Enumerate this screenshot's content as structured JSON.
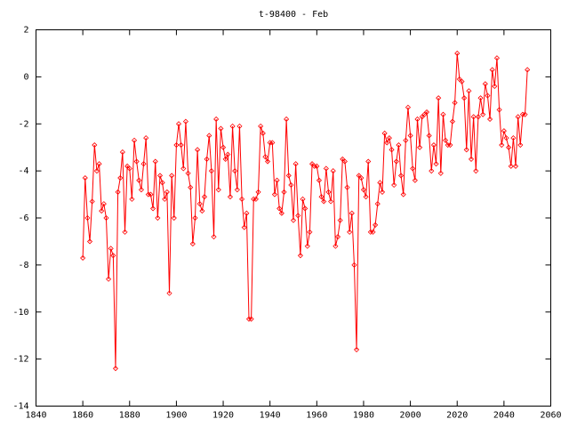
{
  "chart_data": {
    "type": "line",
    "title": "t-98400 - Feb",
    "x": [
      1860,
      1861,
      1862,
      1863,
      1864,
      1865,
      1866,
      1867,
      1868,
      1869,
      1870,
      1871,
      1872,
      1873,
      1874,
      1875,
      1876,
      1877,
      1878,
      1879,
      1880,
      1881,
      1882,
      1883,
      1884,
      1885,
      1886,
      1887,
      1888,
      1889,
      1890,
      1891,
      1892,
      1893,
      1894,
      1895,
      1896,
      1897,
      1898,
      1899,
      1900,
      1901,
      1902,
      1903,
      1904,
      1905,
      1906,
      1907,
      1908,
      1909,
      1910,
      1911,
      1912,
      1913,
      1914,
      1915,
      1916,
      1917,
      1918,
      1919,
      1920,
      1921,
      1922,
      1923,
      1924,
      1925,
      1926,
      1927,
      1928,
      1929,
      1930,
      1931,
      1932,
      1933,
      1934,
      1935,
      1936,
      1937,
      1938,
      1939,
      1940,
      1941,
      1942,
      1943,
      1944,
      1945,
      1946,
      1947,
      1948,
      1949,
      1950,
      1951,
      1952,
      1953,
      1954,
      1955,
      1956,
      1957,
      1958,
      1959,
      1960,
      1961,
      1962,
      1963,
      1964,
      1965,
      1966,
      1967,
      1968,
      1969,
      1970,
      1971,
      1972,
      1973,
      1974,
      1975,
      1976,
      1977,
      1978,
      1979,
      1980,
      1981,
      1982,
      1983,
      1984,
      1985,
      1986,
      1987,
      1988,
      1989,
      1990,
      1991,
      1992,
      1993,
      1994,
      1995,
      1996,
      1997,
      1998,
      1999,
      2000,
      2001,
      2002,
      2003,
      2004,
      2005,
      2006,
      2007,
      2008,
      2009,
      2010,
      2011,
      2012,
      2013,
      2014,
      2015,
      2016,
      2017,
      2018,
      2019,
      2020,
      2021,
      2022,
      2023,
      2024,
      2025,
      2026,
      2027,
      2028,
      2029,
      2030,
      2031,
      2032,
      2033,
      2034,
      2035,
      2036,
      2037,
      2038,
      2039,
      2040,
      2041,
      2042,
      2043,
      2044,
      2045,
      2046,
      2047,
      2048,
      2049,
      2050
    ],
    "series": [
      {
        "color": "#ff0000",
        "values": [
          -7.7,
          -4.3,
          -6.0,
          -7.0,
          -5.3,
          -2.9,
          -4.0,
          -3.7,
          -5.7,
          -5.4,
          -6.0,
          -8.6,
          -7.3,
          -7.6,
          -12.4,
          -4.9,
          -4.3,
          -3.2,
          -6.6,
          -3.8,
          -3.9,
          -5.2,
          -2.7,
          -3.6,
          -4.4,
          -4.8,
          -3.7,
          -2.6,
          -5.0,
          -5.0,
          -5.6,
          -3.6,
          -6.0,
          -4.2,
          -4.5,
          -5.2,
          -4.9,
          -9.2,
          -4.2,
          -6.0,
          -2.9,
          -2.0,
          -2.9,
          -3.9,
          -1.9,
          -4.1,
          -4.7,
          -7.1,
          -6.0,
          -3.1,
          -5.4,
          -5.7,
          -5.1,
          -3.5,
          -2.5,
          -4.0,
          -6.8,
          -1.8,
          -4.8,
          -2.2,
          -3.0,
          -3.5,
          -3.3,
          -5.1,
          -2.1,
          -4.0,
          -4.8,
          -2.1,
          -5.2,
          -6.4,
          -5.8,
          -10.3,
          -10.3,
          -5.2,
          -5.2,
          -4.9,
          -2.1,
          -2.4,
          -3.4,
          -3.6,
          -2.8,
          -2.8,
          -5.0,
          -4.4,
          -5.6,
          -5.8,
          -4.9,
          -1.8,
          -4.2,
          -4.6,
          -6.1,
          -3.7,
          -5.9,
          -7.6,
          -5.2,
          -5.6,
          -7.2,
          -6.6,
          -3.7,
          -3.8,
          -3.8,
          -4.4,
          -5.1,
          -5.3,
          -3.9,
          -4.9,
          -5.3,
          -4.0,
          -7.2,
          -6.8,
          -6.1,
          -3.5,
          -3.6,
          -4.7,
          -6.6,
          -5.8,
          -8.0,
          -11.6,
          -4.2,
          -4.3,
          -4.8,
          -5.1,
          -3.6,
          -6.6,
          -6.6,
          -6.3,
          -5.4,
          -4.5,
          -4.9,
          -2.4,
          -2.8,
          -2.6,
          -3.1,
          -4.6,
          -3.6,
          -2.9,
          -4.2,
          -5.0,
          -2.7,
          -1.3,
          -2.5,
          -3.9,
          -4.4,
          -1.8,
          -3.0,
          -1.7,
          -1.6,
          -1.5,
          -2.5,
          -4.0,
          -2.9,
          -3.7,
          -0.9,
          -4.1,
          -1.6,
          -2.7,
          -2.9,
          -2.9,
          -1.9,
          -1.1,
          1.0,
          -0.1,
          -0.2,
          -0.9,
          -3.1,
          -0.6,
          -3.5,
          -1.7,
          -4.0,
          -1.7,
          -0.9,
          -1.6,
          -0.3,
          -0.8,
          -1.8,
          0.3,
          -0.4,
          0.8,
          -1.4,
          -2.9,
          -2.3,
          -2.6,
          -3.0,
          -3.8,
          -2.6,
          -3.8,
          -1.7,
          -2.9,
          -1.6,
          -1.6,
          0.3
        ]
      }
    ],
    "xlim": [
      1840,
      2060
    ],
    "xticks": [
      1840,
      1860,
      1880,
      1900,
      1920,
      1940,
      1960,
      1980,
      2000,
      2020,
      2040,
      2060
    ],
    "ylim": [
      -14,
      2
    ],
    "yticks": [
      -14,
      -12,
      -10,
      -8,
      -6,
      -4,
      -2,
      0,
      2
    ]
  }
}
